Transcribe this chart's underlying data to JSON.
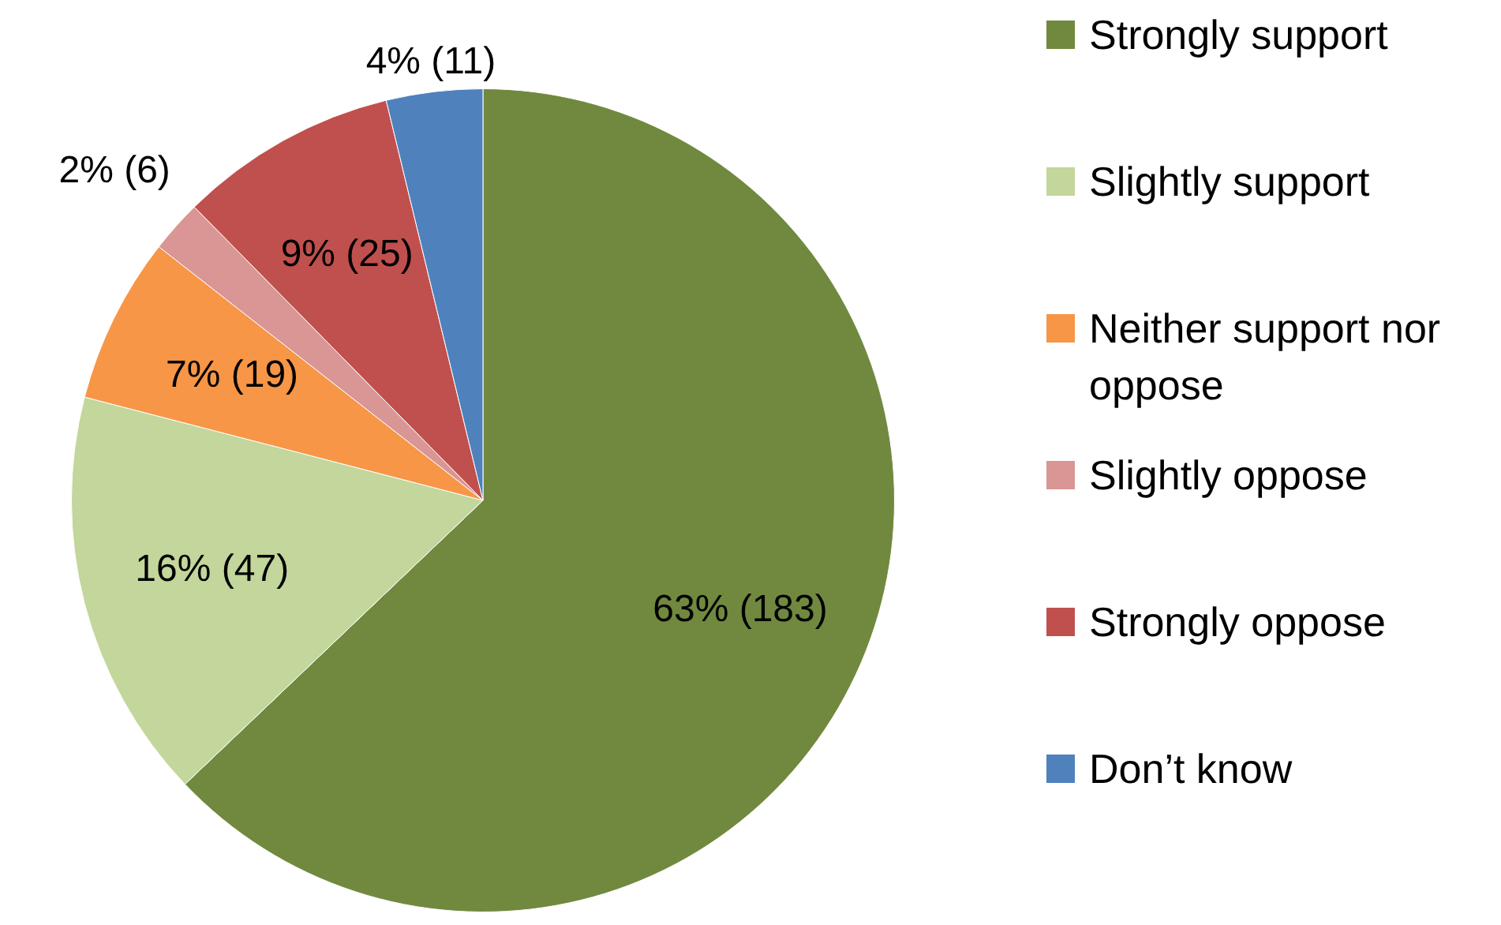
{
  "chart_data": {
    "type": "pie",
    "categories": [
      "Strongly support",
      "Slightly support",
      "Neither support nor oppose",
      "Slightly oppose",
      "Strongly oppose",
      "Don’t know"
    ],
    "values": [
      183,
      47,
      19,
      6,
      25,
      11
    ],
    "value_labels": [
      "63% (183)",
      "16% (47)",
      "7% (19)",
      "2% (6)",
      "9% (25)",
      "4% (11)"
    ],
    "colors": [
      "#71893f",
      "#c3d69b",
      "#f79646",
      "#d99694",
      "#c0504d",
      "#4f81bd"
    ],
    "legend": "right"
  }
}
